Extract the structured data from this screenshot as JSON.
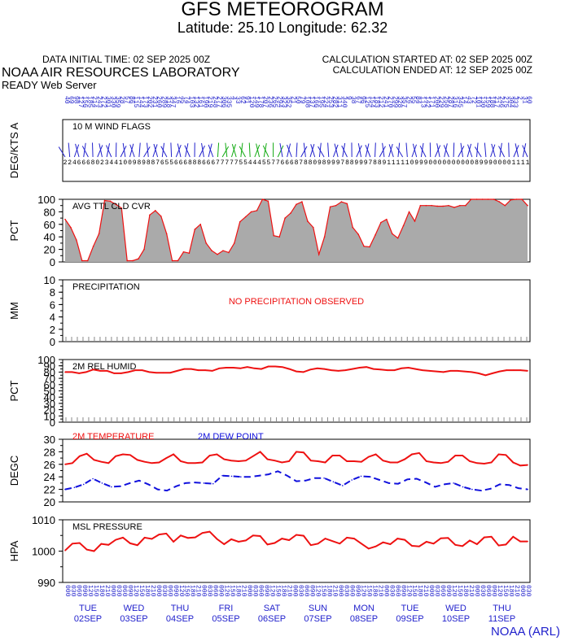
{
  "header": {
    "title": "GFS METEOROGRAM",
    "subtitle": "Latitude: 25.10 Longitude:  62.32",
    "init_time": "DATA INITIAL TIME: 02 SEP 2025 00Z",
    "calc_started": "CALCULATION STARTED AT: 02 SEP 2025 00Z",
    "calc_ended": "CALCULATION ENDED AT: 12 SEP 2025 00Z",
    "lab": "NOAA AIR RESOURCES LABORATORY",
    "server": "READY Web Server",
    "credit": "NOAA (ARL)"
  },
  "days": [
    {
      "dow": "TUE",
      "date": "02SEP"
    },
    {
      "dow": "WED",
      "date": "03SEP"
    },
    {
      "dow": "THU",
      "date": "04SEP"
    },
    {
      "dow": "FRI",
      "date": "05SEP"
    },
    {
      "dow": "SAT",
      "date": "06SEP"
    },
    {
      "dow": "SUN",
      "date": "07SEP"
    },
    {
      "dow": "MON",
      "date": "08SEP"
    },
    {
      "dow": "TUE",
      "date": "09SEP"
    },
    {
      "dow": "WED",
      "date": "10SEP"
    },
    {
      "dow": "THU",
      "date": "11SEP"
    }
  ],
  "colors": {
    "temp": "#ee1111",
    "dew": "#1111dd",
    "cloud_fill": "#aaaaaa",
    "axis": "#000000"
  },
  "chart_data": [
    {
      "type": "wind-barbs",
      "title": "10 M  WIND FLAGS",
      "ylabel": "DEG/KTS  A",
      "speed_knots": [
        2,
        2,
        4,
        6,
        6,
        6,
        8,
        10,
        12,
        13,
        14,
        14,
        11,
        10,
        10,
        9,
        8,
        9,
        8,
        8,
        7,
        6,
        5,
        5,
        6,
        6,
        6,
        8,
        8,
        8,
        6,
        6,
        6,
        7,
        7,
        7,
        7,
        7,
        5,
        5,
        4,
        4,
        4,
        5,
        5,
        7,
        7,
        6,
        6,
        6,
        8,
        7,
        8,
        8,
        10,
        9,
        8,
        9,
        9,
        9,
        7,
        8,
        8,
        9,
        9,
        9,
        7,
        8,
        8,
        9,
        11,
        11,
        11,
        11,
        11,
        10,
        9,
        9,
        9,
        10,
        10,
        10,
        10,
        10,
        10,
        10,
        10,
        10,
        10,
        8,
        9,
        9,
        9,
        10,
        10,
        10,
        10,
        11,
        11,
        11,
        11
      ]
    },
    {
      "type": "area",
      "title": "AVG TTL CLD CVR",
      "ylabel": "PCT",
      "ylim": [
        0,
        100
      ],
      "yticks": [
        0,
        20,
        40,
        60,
        80,
        100
      ],
      "values": [
        68,
        55,
        35,
        2,
        2,
        25,
        45,
        98,
        97,
        92,
        86,
        2,
        2,
        5,
        20,
        75,
        82,
        73,
        45,
        2,
        2,
        16,
        14,
        52,
        60,
        30,
        18,
        12,
        18,
        15,
        30,
        64,
        72,
        80,
        82,
        100,
        97,
        42,
        40,
        70,
        78,
        92,
        96,
        65,
        55,
        12,
        40,
        88,
        90,
        96,
        93,
        55,
        44,
        25,
        24,
        43,
        63,
        68,
        45,
        38,
        58,
        80,
        65,
        90,
        90,
        90,
        89,
        89,
        90,
        87,
        90,
        90,
        100,
        100,
        100,
        100,
        100,
        96,
        90,
        99,
        100,
        100,
        90
      ]
    },
    {
      "type": "bar",
      "title": "PRECIPITATION",
      "ylabel": "MM",
      "ylim": [
        0,
        10
      ],
      "yticks": [
        0,
        2,
        4,
        6,
        8,
        10
      ],
      "annotation": "NO PRECIPITATION OBSERVED",
      "values": []
    },
    {
      "type": "line",
      "title": "2M REL HUMID",
      "ylabel": "PCT",
      "ylim": [
        0,
        100
      ],
      "yticks": [
        0,
        10,
        20,
        30,
        40,
        50,
        60,
        70,
        80,
        90,
        100
      ],
      "values": [
        80,
        80,
        78,
        80,
        84,
        82,
        82,
        78,
        78,
        80,
        83,
        83,
        80,
        79,
        79,
        79,
        82,
        85,
        85,
        83,
        83,
        82,
        86,
        87,
        87,
        86,
        88,
        86,
        85,
        89,
        89,
        88,
        85,
        81,
        80,
        84,
        86,
        85,
        83,
        82,
        83,
        85,
        87,
        88,
        85,
        84,
        83,
        83,
        86,
        87,
        85,
        83,
        82,
        81,
        80,
        82,
        82,
        81,
        80,
        78,
        75,
        78,
        81,
        83,
        83,
        83,
        82
      ]
    },
    {
      "type": "line",
      "title": "2M TEMPERATURE",
      "ylabel": "DEGC",
      "ylim": [
        20,
        30
      ],
      "yticks": [
        20,
        22,
        24,
        26,
        28,
        30
      ],
      "series": [
        {
          "name": "2M TEMPERATURE",
          "values": [
            26.0,
            26.2,
            27.3,
            27.7,
            26.7,
            26.4,
            26.2,
            27.3,
            27.6,
            27.5,
            26.7,
            26.4,
            26.2,
            26.3,
            27.0,
            27.6,
            26.5,
            26.2,
            26.2,
            26.3,
            27.4,
            27.6,
            26.8,
            26.6,
            26.5,
            26.6,
            27.3,
            28.0,
            26.8,
            26.6,
            26.3,
            26.5,
            28.0,
            27.9,
            26.6,
            26.5,
            26.3,
            27.4,
            27.4,
            26.5,
            26.5,
            26.4,
            27.2,
            27.6,
            26.6,
            26.3,
            26.3,
            26.8,
            27.6,
            27.8,
            26.5,
            26.3,
            26.2,
            26.4,
            27.4,
            27.4,
            26.5,
            26.2,
            26.1,
            26.3,
            27.6,
            27.5,
            26.3,
            25.8,
            25.9
          ]
        },
        {
          "name": "2M   DEW POINT",
          "values": [
            22.0,
            22.3,
            22.8,
            23.7,
            23.0,
            22.4,
            22.5,
            23.0,
            23.4,
            22.8,
            22.0,
            21.8,
            22.5,
            23.0,
            23.1,
            23.0,
            22.9,
            24.2,
            24.1,
            24.0,
            24.0,
            24.2,
            24.4,
            24.9,
            24.2,
            23.3,
            23.4,
            23.8,
            23.8,
            23.2,
            22.6,
            23.5,
            24.1,
            24.0,
            23.5,
            23.0,
            22.9,
            23.6,
            23.7,
            23.1,
            22.4,
            22.8,
            23.0,
            22.4,
            22.0,
            21.8,
            22.1,
            22.8,
            22.7,
            22.2,
            22.0
          ]
        }
      ]
    },
    {
      "type": "line",
      "title": "MSL PRESSURE",
      "ylabel": "HPA",
      "ylim": [
        990,
        1010
      ],
      "yticks": [
        990,
        1000,
        1010
      ],
      "values": [
        1000.2,
        1002.4,
        1002.6,
        1000.5,
        1000.0,
        1002.3,
        1002.0,
        1003.6,
        1004.3,
        1002.5,
        1001.9,
        1004.3,
        1003.9,
        1005.3,
        1005.6,
        1003.0,
        1005.0,
        1004.2,
        1004.4,
        1005.8,
        1006.2,
        1003.9,
        1002.2,
        1003.8,
        1003.0,
        1003.4,
        1005.0,
        1004.8,
        1002.1,
        1002.6,
        1004.0,
        1003.5,
        1005.2,
        1004.9,
        1001.9,
        1002.4,
        1004.0,
        1003.2,
        1002.4,
        1004.3,
        1004.0,
        1002.4,
        1000.8,
        1001.5,
        1002.8,
        1002.2,
        1004.0,
        1003.6,
        1001.7,
        1001.5,
        1003.0,
        1002.4,
        1004.1,
        1004.2,
        1002.0,
        1001.6,
        1003.4,
        1002.2,
        1004.4,
        1004.6,
        1001.8,
        1002.1,
        1004.6,
        1003.1,
        1003.1
      ]
    }
  ]
}
